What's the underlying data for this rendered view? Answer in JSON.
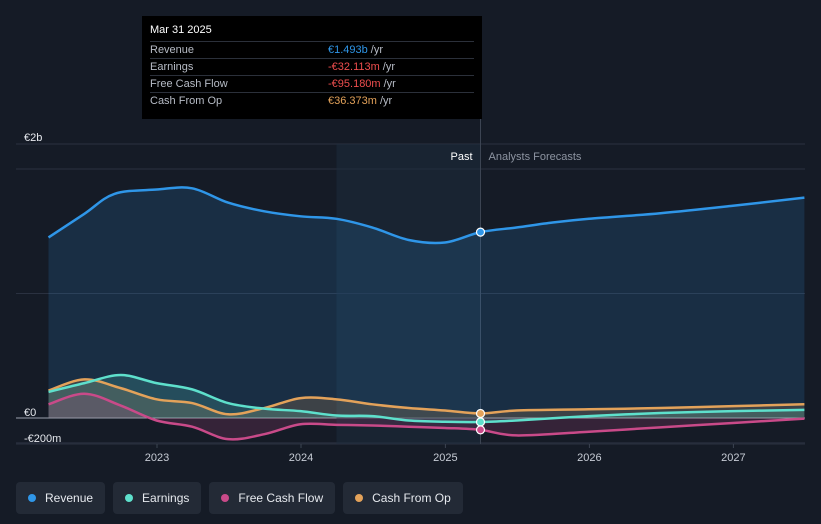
{
  "chart_data": {
    "type": "area",
    "x_axis": {
      "ticks": [
        "2023",
        "2024",
        "2025",
        "2026",
        "2027"
      ]
    },
    "y_axis": {
      "labels": [
        "€2b",
        "€0",
        "-€200m"
      ],
      "ylim": [
        -200,
        2000
      ],
      "unit": "€m"
    },
    "regions": {
      "past_label": "Past",
      "forecast_label": "Analysts Forecasts",
      "divider_date": "2025-03-31"
    },
    "series": [
      {
        "name": "Revenue",
        "color": "#2f96e8",
        "points": [
          [
            "2022-04-01",
            1450
          ],
          [
            "2022-07-01",
            1640
          ],
          [
            "2022-09-15",
            1800
          ],
          [
            "2022-12-31",
            1835
          ],
          [
            "2023-03-31",
            1845
          ],
          [
            "2023-06-30",
            1730
          ],
          [
            "2023-09-30",
            1660
          ],
          [
            "2023-12-31",
            1620
          ],
          [
            "2024-03-31",
            1600
          ],
          [
            "2024-06-30",
            1530
          ],
          [
            "2024-09-30",
            1430
          ],
          [
            "2024-12-31",
            1410
          ],
          [
            "2025-03-31",
            1493
          ],
          [
            "2025-06-30",
            1530
          ],
          [
            "2025-09-30",
            1570
          ],
          [
            "2025-12-31",
            1600
          ],
          [
            "2026-06-30",
            1645
          ],
          [
            "2026-12-31",
            1705
          ],
          [
            "2027-06-30",
            1770
          ]
        ]
      },
      {
        "name": "Earnings",
        "color": "#5ee0cc",
        "points": [
          [
            "2022-04-01",
            210
          ],
          [
            "2022-07-01",
            280
          ],
          [
            "2022-10-01",
            345
          ],
          [
            "2022-12-31",
            280
          ],
          [
            "2023-03-31",
            230
          ],
          [
            "2023-06-30",
            120
          ],
          [
            "2023-09-30",
            75
          ],
          [
            "2023-12-31",
            55
          ],
          [
            "2024-03-31",
            20
          ],
          [
            "2024-06-30",
            15
          ],
          [
            "2024-09-30",
            -20
          ],
          [
            "2024-12-31",
            -30
          ],
          [
            "2025-03-31",
            -32.113
          ],
          [
            "2025-06-30",
            -20
          ],
          [
            "2025-12-31",
            15
          ],
          [
            "2026-06-30",
            40
          ],
          [
            "2026-12-31",
            55
          ],
          [
            "2027-06-30",
            65
          ]
        ]
      },
      {
        "name": "Free Cash Flow",
        "color": "#c94a89",
        "points": [
          [
            "2022-04-01",
            110
          ],
          [
            "2022-07-01",
            195
          ],
          [
            "2022-10-01",
            100
          ],
          [
            "2022-12-31",
            -20
          ],
          [
            "2023-03-31",
            -70
          ],
          [
            "2023-06-30",
            -170
          ],
          [
            "2023-09-30",
            -130
          ],
          [
            "2023-12-31",
            -50
          ],
          [
            "2024-03-31",
            -55
          ],
          [
            "2024-06-30",
            -60
          ],
          [
            "2024-09-30",
            -70
          ],
          [
            "2024-12-31",
            -80
          ],
          [
            "2025-03-31",
            -95.18
          ],
          [
            "2025-06-30",
            -140
          ],
          [
            "2025-12-31",
            -110
          ],
          [
            "2026-06-30",
            -75
          ],
          [
            "2026-12-31",
            -40
          ],
          [
            "2027-06-30",
            -5
          ]
        ]
      },
      {
        "name": "Cash From Op",
        "color": "#e3a25a",
        "points": [
          [
            "2022-04-01",
            220
          ],
          [
            "2022-07-01",
            310
          ],
          [
            "2022-10-01",
            240
          ],
          [
            "2022-12-31",
            150
          ],
          [
            "2023-03-31",
            120
          ],
          [
            "2023-06-30",
            30
          ],
          [
            "2023-09-30",
            80
          ],
          [
            "2023-12-31",
            160
          ],
          [
            "2024-03-31",
            150
          ],
          [
            "2024-06-30",
            110
          ],
          [
            "2024-09-30",
            80
          ],
          [
            "2024-12-31",
            60
          ],
          [
            "2025-03-31",
            36.373
          ],
          [
            "2025-06-30",
            60
          ],
          [
            "2025-12-31",
            70
          ],
          [
            "2026-06-30",
            80
          ],
          [
            "2026-12-31",
            95
          ],
          [
            "2027-06-30",
            110
          ]
        ]
      }
    ],
    "legend_placement": "bottom"
  },
  "tooltip": {
    "date": "Mar 31 2025",
    "unit": "/yr",
    "rows": [
      {
        "name": "Revenue",
        "value": "€1.493b",
        "color": "#2f96e8"
      },
      {
        "name": "Earnings",
        "value": "-€32.113m",
        "color": "#ef4e4e"
      },
      {
        "name": "Free Cash Flow",
        "value": "-€95.180m",
        "color": "#ef4e4e"
      },
      {
        "name": "Cash From Op",
        "value": "€36.373m",
        "color": "#e3a25a"
      }
    ]
  },
  "legend": [
    {
      "label": "Revenue",
      "color": "#2f96e8"
    },
    {
      "label": "Earnings",
      "color": "#5ee0cc"
    },
    {
      "label": "Free Cash Flow",
      "color": "#c94a89"
    },
    {
      "label": "Cash From Op",
      "color": "#e3a25a"
    }
  ]
}
